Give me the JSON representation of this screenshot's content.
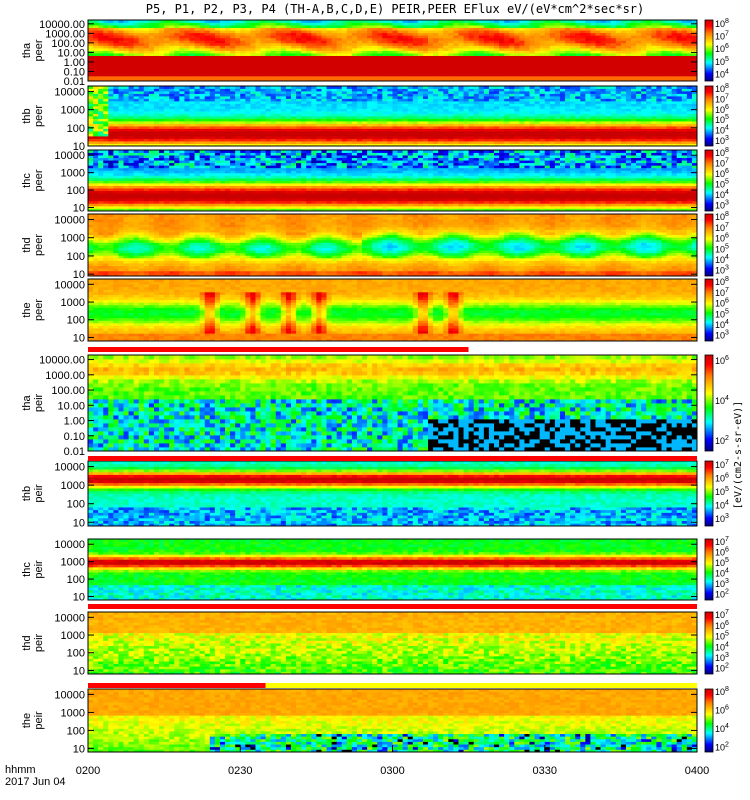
{
  "chart_data": {
    "type": "heatmap",
    "title": "P5, P1, P2, P3, P4 (TH-A,B,C,D,E) PEIR,PEER EFlux eV/(eV*cm^2*sec*sr)",
    "colorbar_label": "[eV/(cm2-s-sr-eV)]",
    "xlabel": [
      "hhmm",
      "2017 Jun 04"
    ],
    "x_ticks": [
      "0200",
      "0230",
      "0300",
      "0330",
      "0400"
    ],
    "panels": [
      {
        "probe": "tha",
        "species": "peer",
        "yticks": [
          "10000.00",
          "1000.00",
          "100.00",
          "10.00",
          "1.00",
          "0.10",
          "0.01"
        ],
        "ymin_exp": -2,
        "ymax_exp": 4.4,
        "cb_exps": [
          4,
          5,
          6,
          7,
          8
        ],
        "profile": "tha_peer"
      },
      {
        "probe": "thb",
        "species": "peer",
        "yticks": [
          "10000",
          "1000",
          "100",
          "10"
        ],
        "ymin_exp": 1,
        "ymax_exp": 4.3,
        "cb_exps": [
          3,
          4,
          5,
          6,
          7,
          8
        ],
        "profile": "thb_peer"
      },
      {
        "probe": "thc",
        "species": "peer",
        "yticks": [
          "10000",
          "1000",
          "100",
          "10"
        ],
        "ymin_exp": 0.8,
        "ymax_exp": 4.3,
        "cb_exps": [
          3,
          4,
          5,
          6,
          7,
          8
        ],
        "profile": "thc_peer"
      },
      {
        "probe": "thd",
        "species": "peer",
        "yticks": [
          "10000",
          "1000",
          "100",
          "10"
        ],
        "ymin_exp": 0.9,
        "ymax_exp": 4.3,
        "cb_exps": [
          3,
          4,
          5,
          6,
          7,
          8
        ],
        "profile": "thd_peer"
      },
      {
        "probe": "the",
        "species": "peer",
        "yticks": [
          "10000",
          "1000",
          "100",
          "10"
        ],
        "ymin_exp": 0.8,
        "ymax_exp": 4.3,
        "cb_exps": [
          3,
          4,
          5,
          6,
          7,
          8
        ],
        "profile": "the_peer"
      },
      {
        "probe": "tha",
        "species": "peir",
        "yticks": [
          "10000.00",
          "1000.00",
          "100.00",
          "10.00",
          "1.00",
          "0.10",
          "0.01"
        ],
        "ymin_exp": -2,
        "ymax_exp": 4.3,
        "cb_exps": [
          2,
          4,
          6
        ],
        "profile": "tha_peir"
      },
      {
        "probe": "thb",
        "species": "peir",
        "yticks": [
          "10000",
          "1000",
          "100",
          "10"
        ],
        "ymin_exp": 0.8,
        "ymax_exp": 4.3,
        "cb_exps": [
          3,
          4,
          5,
          6,
          7
        ],
        "profile": "thb_peir"
      },
      {
        "probe": "thc",
        "species": "peir",
        "yticks": [
          "10000",
          "1000",
          "100",
          "10"
        ],
        "ymin_exp": 0.8,
        "ymax_exp": 4.3,
        "cb_exps": [
          2,
          3,
          4,
          5,
          6,
          7
        ],
        "profile": "thc_peir"
      },
      {
        "probe": "thd",
        "species": "peir",
        "yticks": [
          "10000",
          "1000",
          "100",
          "10"
        ],
        "ymin_exp": 0.8,
        "ymax_exp": 4.3,
        "cb_exps": [
          2,
          3,
          4,
          5,
          6,
          7
        ],
        "profile": "thd_peir"
      },
      {
        "probe": "the",
        "species": "peir",
        "yticks": [
          "10000",
          "1000",
          "100",
          "10"
        ],
        "ymin_exp": 0.8,
        "ymax_exp": 4.3,
        "cb_exps": [
          2,
          4,
          6,
          8
        ],
        "profile": "the_peir"
      }
    ],
    "mode_bars": [
      {
        "after_panel": 5,
        "segments": [
          {
            "from": "0200",
            "to": "0315",
            "color": "#ff0000"
          },
          {
            "from": "0315",
            "to": "0400",
            "color": "#ffffff"
          }
        ]
      },
      {
        "after_panel": 6,
        "segments": [
          {
            "from": "0200",
            "to": "0400",
            "color": "#ff0000"
          }
        ]
      },
      {
        "after_panel": 8,
        "segments": [
          {
            "from": "0200",
            "to": "0400",
            "color": "#ff0000"
          }
        ]
      },
      {
        "after_panel": 9,
        "segments": [
          {
            "from": "0200",
            "to": "0235",
            "color": "#ff0000"
          },
          {
            "from": "0235",
            "to": "0400",
            "color": "#ffff00"
          }
        ]
      }
    ]
  }
}
